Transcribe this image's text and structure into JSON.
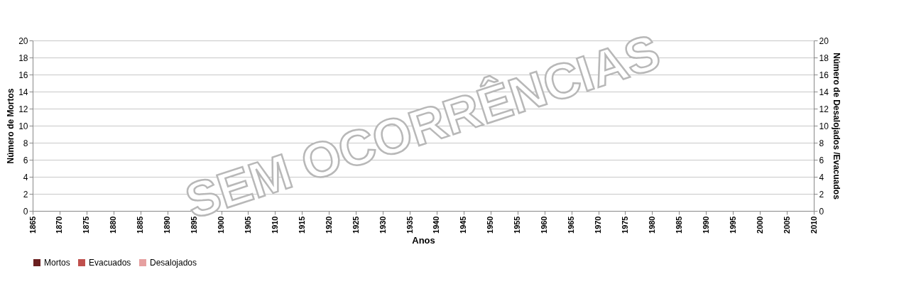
{
  "chart_data": {
    "type": "bar",
    "xlabel": "Anos",
    "ylabel": "Número de Mortos",
    "y2label": "Número de  Desalojados /Evacuados",
    "categories": [
      "1865",
      "1870",
      "1875",
      "1880",
      "1885",
      "1890",
      "1895",
      "1900",
      "1905",
      "1910",
      "1915",
      "1920",
      "1925",
      "1930",
      "1935",
      "1940",
      "1945",
      "1950",
      "1955",
      "1960",
      "1965",
      "1970",
      "1975",
      "1980",
      "1985",
      "1990",
      "1995",
      "2000",
      "2005",
      "2010"
    ],
    "ylim": [
      0,
      20
    ],
    "yticks": [
      0,
      2,
      4,
      6,
      8,
      10,
      12,
      14,
      16,
      18,
      20
    ],
    "y2lim": [
      0,
      20
    ],
    "y2ticks": [
      0,
      2,
      4,
      6,
      8,
      10,
      12,
      14,
      16,
      18,
      20
    ],
    "series": [
      {
        "name": "Mortos",
        "color": "#6b2020",
        "values": [
          null,
          null,
          null,
          null,
          null,
          null,
          null,
          null,
          null,
          null,
          null,
          null,
          null,
          null,
          null,
          null,
          null,
          null,
          null,
          null,
          null,
          null,
          null,
          null,
          null,
          null,
          null,
          null,
          null,
          null
        ]
      },
      {
        "name": "Evacuados",
        "color": "#c0504d",
        "values": [
          null,
          null,
          null,
          null,
          null,
          null,
          null,
          null,
          null,
          null,
          null,
          null,
          null,
          null,
          null,
          null,
          null,
          null,
          null,
          null,
          null,
          null,
          null,
          null,
          null,
          null,
          null,
          null,
          null,
          null
        ]
      },
      {
        "name": "Desalojados",
        "color": "#e6a0a0",
        "values": [
          null,
          null,
          null,
          null,
          null,
          null,
          null,
          null,
          null,
          null,
          null,
          null,
          null,
          null,
          null,
          null,
          null,
          null,
          null,
          null,
          null,
          null,
          null,
          null,
          null,
          null,
          null,
          null,
          null,
          null
        ]
      }
    ],
    "annotations": [
      "SEM OCORRÊNCIAS"
    ],
    "grid": "y",
    "legend": "bottom"
  }
}
